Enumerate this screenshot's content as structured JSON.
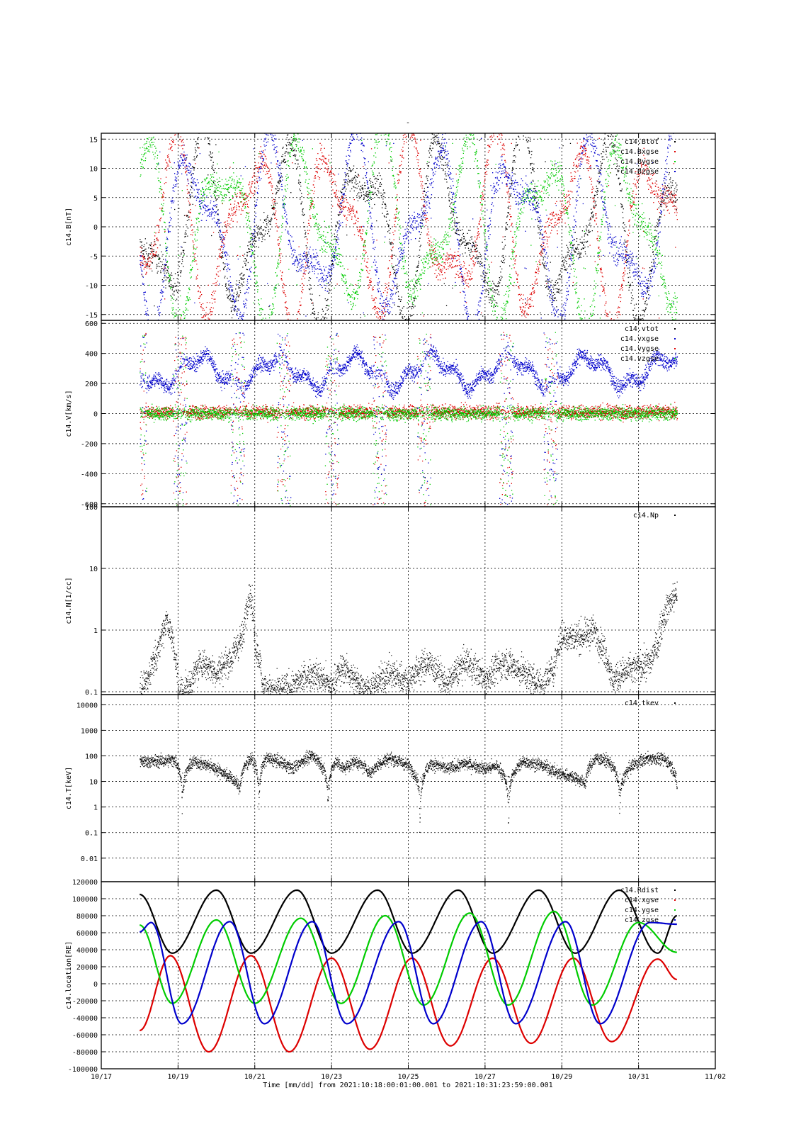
{
  "figure": {
    "title": "-",
    "xlabel": "Time [mm/dd]  from 2021:10:18:00:01:00.001  to  2021:10:31:23:59:00.001",
    "x_range_days": [
      0,
      16
    ],
    "x_tick_days": [
      0,
      2,
      4,
      6,
      8,
      10,
      12,
      14,
      16
    ],
    "x_tick_labels": [
      "10/17",
      "10/19",
      "10/21",
      "10/23",
      "10/25",
      "10/27",
      "10/29",
      "10/31",
      "11/02"
    ],
    "data_start_day": 1.0,
    "data_end_day": 15.0
  },
  "chart_data": [
    {
      "type": "scatter",
      "panel": "B",
      "ylabel": "c14.B[nT]",
      "scale": "linear",
      "ylim": [
        -16,
        16
      ],
      "yticks": [
        -15,
        -10,
        -5,
        0,
        5,
        10,
        15
      ],
      "ytick_labels": [
        "-15",
        "-10",
        "-5",
        "0",
        "5",
        "10",
        "15"
      ],
      "grid": true,
      "legend_position": "top-right",
      "series": [
        {
          "name": "c14.Btot",
          "color": "#000000"
        },
        {
          "name": "c14.Bxgse",
          "color": "#dd0000"
        },
        {
          "name": "c14.Bygse",
          "color": "#00cc00"
        },
        {
          "name": "c14.Bzgse",
          "color": "#0000cc"
        }
      ]
    },
    {
      "type": "scatter",
      "panel": "V",
      "ylabel": "c14.V[km/s]",
      "scale": "linear",
      "ylim": [
        -620,
        620
      ],
      "yticks": [
        -600,
        -400,
        -200,
        0,
        200,
        400,
        600
      ],
      "ytick_labels": [
        "-600",
        "-400",
        "-200",
        "0",
        "200",
        "400",
        "600"
      ],
      "grid": true,
      "legend_position": "top-right",
      "series": [
        {
          "name": "c14.vtot",
          "color": "#000000",
          "typical": 0
        },
        {
          "name": "c14.vxgse",
          "color": "#0000cc",
          "typical": 280
        },
        {
          "name": "c14.vygse",
          "color": "#dd0000",
          "typical": 10
        },
        {
          "name": "c14.vzgse",
          "color": "#00cc00",
          "typical": 0
        }
      ]
    },
    {
      "type": "scatter",
      "panel": "N",
      "ylabel": "c14.N[1/cc]",
      "scale": "log",
      "ylim": [
        0.09,
        100
      ],
      "yticks": [
        0.1,
        1,
        10,
        100
      ],
      "ytick_labels": [
        "0.1",
        "1",
        "10",
        "100"
      ],
      "grid": true,
      "legend_position": "top-right",
      "series": [
        {
          "name": "c14.Np",
          "color": "#000000"
        }
      ],
      "envelope": {
        "day": [
          1.0,
          1.2,
          1.5,
          1.7,
          1.85,
          2.0,
          2.3,
          2.6,
          3.0,
          3.4,
          3.7,
          3.85,
          4.0,
          4.2,
          4.5,
          5.0,
          5.5,
          6.0,
          6.3,
          6.6,
          7.0,
          7.5,
          8.0,
          8.5,
          9.0,
          9.5,
          10.0,
          10.5,
          11.0,
          11.5,
          11.8,
          12.0,
          12.3,
          12.6,
          12.8,
          13.0,
          13.3,
          13.6,
          14.0,
          14.3,
          14.5,
          14.7,
          15.0
        ],
        "median": [
          0.09,
          0.15,
          0.5,
          1.5,
          0.6,
          0.1,
          0.12,
          0.3,
          0.2,
          0.35,
          0.8,
          4.0,
          0.6,
          0.12,
          0.1,
          0.12,
          0.2,
          0.12,
          0.25,
          0.15,
          0.1,
          0.2,
          0.15,
          0.3,
          0.12,
          0.3,
          0.15,
          0.3,
          0.2,
          0.12,
          0.25,
          0.8,
          0.75,
          0.8,
          1.0,
          0.6,
          0.15,
          0.2,
          0.25,
          0.3,
          0.6,
          2.0,
          4.0
        ]
      }
    },
    {
      "type": "scatter",
      "panel": "T",
      "ylabel": "c14.T[keV]",
      "scale": "log",
      "ylim": [
        0.0012,
        25000
      ],
      "yticks": [
        0.01,
        0.1,
        1,
        10,
        100,
        1000,
        10000
      ],
      "ytick_labels": [
        "0.01",
        "0.1",
        "1",
        "10",
        "100",
        "1000",
        "10000"
      ],
      "grid": true,
      "legend_position": "top-right",
      "series": [
        {
          "name": "c14.tkev",
          "color": "#000000"
        }
      ],
      "envelope": {
        "day": [
          1.0,
          1.5,
          1.9,
          2.1,
          2.4,
          2.8,
          3.2,
          3.6,
          3.9,
          4.1,
          4.3,
          4.6,
          5.0,
          5.5,
          5.9,
          6.1,
          6.3,
          6.6,
          7.0,
          7.5,
          8.0,
          8.3,
          8.6,
          9.0,
          9.5,
          10.0,
          10.3,
          10.6,
          11.0,
          11.5,
          11.9,
          12.3,
          12.6,
          12.9,
          13.2,
          13.5,
          13.9,
          14.3,
          14.7,
          15.0
        ],
        "median": [
          60,
          60,
          70,
          1.0,
          60,
          40,
          20,
          5,
          80,
          1.0,
          80,
          60,
          30,
          100,
          0.5,
          60,
          30,
          60,
          20,
          80,
          40,
          0.5,
          50,
          30,
          50,
          30,
          40,
          0.3,
          60,
          40,
          20,
          15,
          8,
          80,
          60,
          1.0,
          50,
          80,
          70,
          5
        ]
      }
    },
    {
      "type": "line",
      "panel": "location",
      "ylabel": "c14.location[RE]",
      "scale": "linear",
      "ylim": [
        -100000,
        120000
      ],
      "yticks": [
        -100000,
        -80000,
        -60000,
        -40000,
        -20000,
        0,
        20000,
        40000,
        60000,
        80000,
        100000,
        120000
      ],
      "ytick_labels": [
        "-100000",
        "-80000",
        "-60000",
        "-40000",
        "-20000",
        "0",
        "20000",
        "40000",
        "60000",
        "80000",
        "100000",
        "120000"
      ],
      "grid": true,
      "legend_position": "top-right",
      "series": [
        {
          "name": "c14.Rdist",
          "color": "#000000",
          "x": [
            1.0,
            1.85,
            3.0,
            3.9,
            5.1,
            6.0,
            7.2,
            8.1,
            9.3,
            10.2,
            11.4,
            12.35,
            13.5,
            14.5,
            15.0
          ],
          "y": [
            105000,
            36000,
            110000,
            36000,
            110000,
            36000,
            110000,
            36000,
            110000,
            36000,
            110000,
            36000,
            110000,
            36000,
            80000
          ]
        },
        {
          "name": "c14.xgse",
          "color": "#dd0000",
          "x": [
            1.0,
            1.8,
            2.8,
            3.9,
            4.9,
            6.0,
            7.0,
            8.1,
            9.1,
            10.2,
            11.2,
            12.3,
            13.3,
            14.5,
            15.0
          ],
          "y": [
            -55000,
            33000,
            -80000,
            33000,
            -80000,
            30000,
            -77000,
            30000,
            -73000,
            30000,
            -70000,
            30000,
            -68000,
            29000,
            5000
          ]
        },
        {
          "name": "c14.ygse",
          "color": "#00cc00",
          "x": [
            1.0,
            1.85,
            3.0,
            4.0,
            5.2,
            6.25,
            7.4,
            8.4,
            9.6,
            10.6,
            11.8,
            12.8,
            14.0,
            15.0
          ],
          "y": [
            69000,
            -23000,
            75000,
            -23000,
            77000,
            -23000,
            80000,
            -25000,
            83000,
            -25000,
            85000,
            -25000,
            72000,
            37000
          ]
        },
        {
          "name": "c14.zgse",
          "color": "#0000cc",
          "x": [
            1.0,
            1.3,
            2.1,
            3.35,
            4.25,
            5.5,
            6.4,
            7.75,
            8.65,
            9.9,
            10.8,
            12.1,
            13.0,
            14.3,
            15.0
          ],
          "y": [
            61000,
            72000,
            -47000,
            73000,
            -47000,
            73000,
            -47000,
            73000,
            -47000,
            73000,
            -47000,
            73000,
            -47000,
            72000,
            70000
          ]
        }
      ]
    }
  ]
}
